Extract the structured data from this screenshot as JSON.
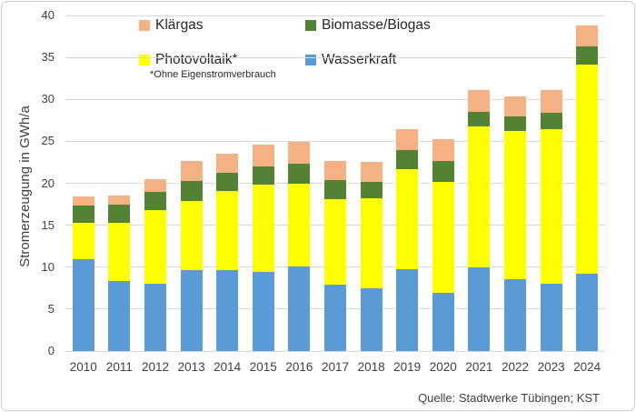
{
  "chart_data": {
    "type": "bar",
    "stacked": true,
    "ylabel": "Stromerzeugung in GWh/a",
    "xlabel": "",
    "ylim": [
      0,
      40
    ],
    "yticks": [
      0,
      5,
      10,
      15,
      20,
      25,
      30,
      35,
      40
    ],
    "grid": true,
    "legend_position": "top",
    "categories": [
      "2010",
      "2011",
      "2012",
      "2013",
      "2014",
      "2015",
      "2016",
      "2017",
      "2018",
      "2019",
      "2020",
      "2021",
      "2022",
      "2023",
      "2024"
    ],
    "series": [
      {
        "name": "Wasserkraft",
        "color": "#5B9BD5",
        "values": [
          11.0,
          8.4,
          8.0,
          9.7,
          9.6,
          9.4,
          10.1,
          7.9,
          7.5,
          9.8,
          6.9,
          10.0,
          8.6,
          8.0,
          9.2
        ]
      },
      {
        "name": "Photovoltaik*",
        "color": "#FFFF00",
        "values": [
          4.3,
          6.9,
          8.8,
          8.2,
          9.5,
          10.4,
          9.9,
          10.2,
          10.7,
          11.9,
          13.3,
          16.8,
          17.6,
          18.4,
          24.9
        ]
      },
      {
        "name": "Biomasse/Biogas",
        "color": "#548235",
        "values": [
          2.0,
          2.2,
          2.2,
          2.4,
          2.1,
          2.2,
          2.3,
          2.3,
          2.0,
          2.3,
          2.5,
          1.7,
          1.8,
          2.0,
          2.2
        ]
      },
      {
        "name": "Klärgas",
        "color": "#F4B183",
        "values": [
          1.1,
          1.0,
          1.5,
          2.4,
          2.3,
          2.6,
          2.6,
          2.3,
          2.4,
          2.5,
          2.6,
          2.6,
          2.4,
          2.7,
          2.5
        ]
      }
    ],
    "totals": [
      18.4,
      18.5,
      20.5,
      22.7,
      23.5,
      24.6,
      24.9,
      22.7,
      22.6,
      26.5,
      25.3,
      31.1,
      30.4,
      31.1,
      38.8
    ],
    "legend": {
      "items": [
        {
          "label": "Klärgas",
          "color": "#F4B183"
        },
        {
          "label": "Biomasse/Biogas",
          "color": "#548235"
        },
        {
          "label": "Photovoltaik*",
          "color": "#FFFF00"
        },
        {
          "label": "Wasserkraft",
          "color": "#5B9BD5"
        }
      ],
      "footnote": "*Ohne Eigenstromverbrauch"
    },
    "source": "Quelle: Stadtwerke Tübingen; KST",
    "colors": {
      "gridline": "#d9d9d9",
      "axis_text": "#404040",
      "frame_border": "#c9c9c9"
    }
  }
}
